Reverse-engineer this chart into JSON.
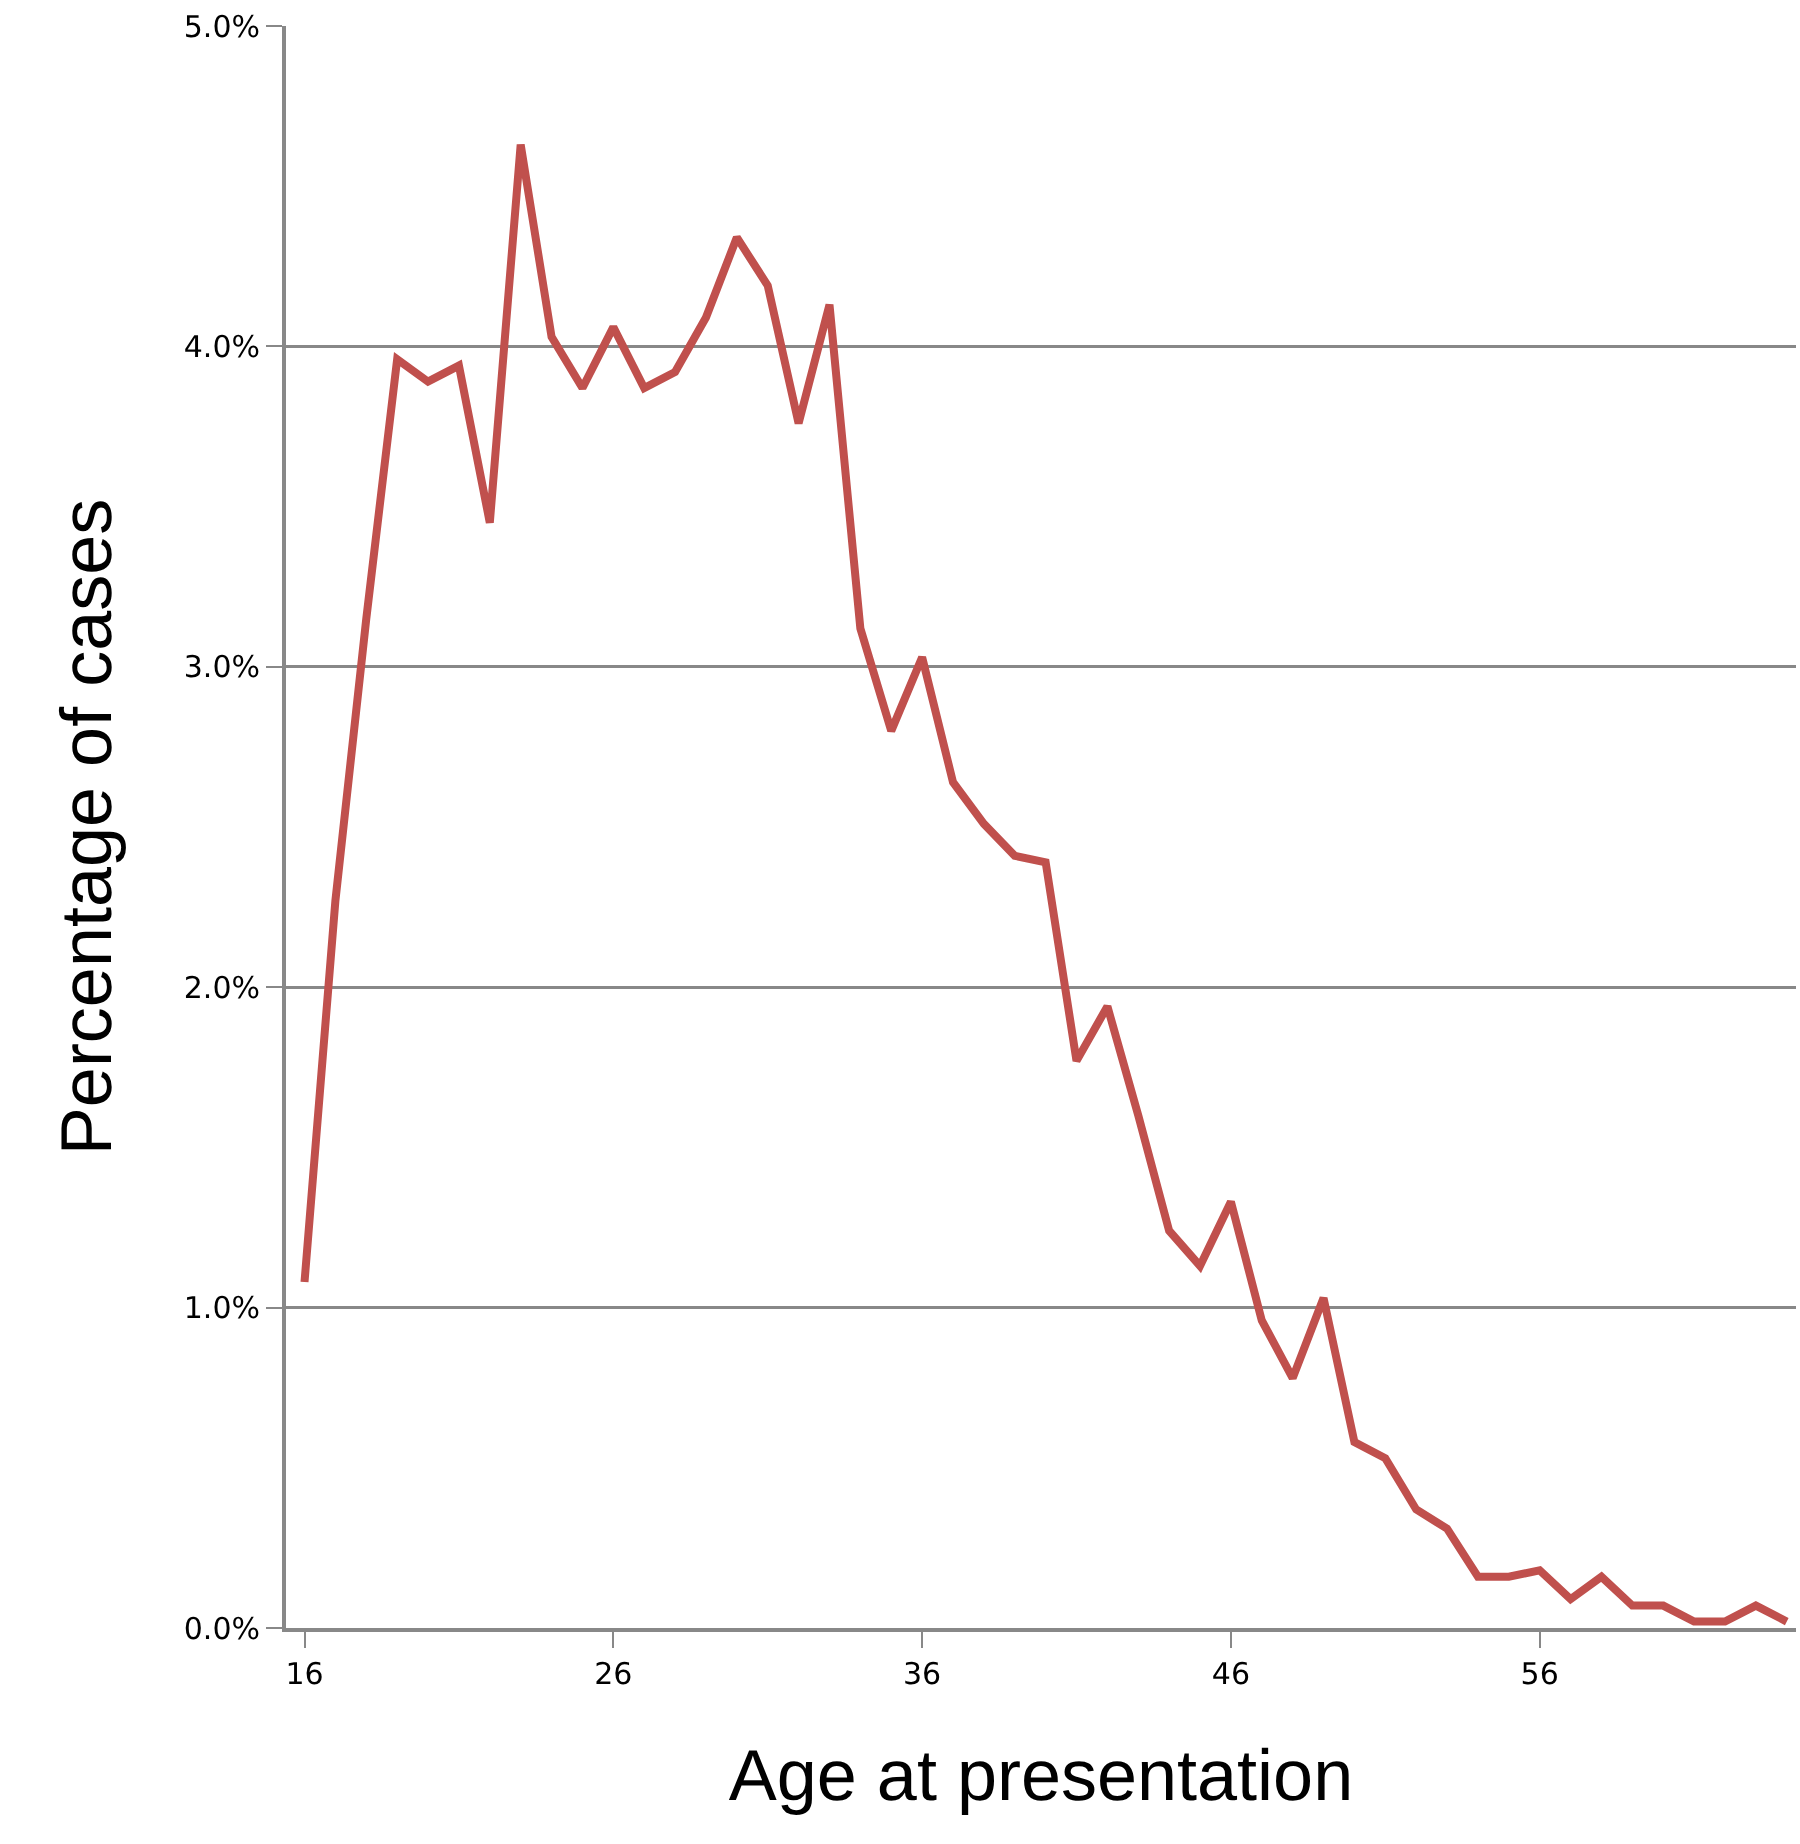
{
  "chart_data": {
    "type": "line",
    "xlabel": "Age at presentation",
    "ylabel": "Percentage of cases",
    "x": [
      16,
      17,
      18,
      19,
      20,
      21,
      22,
      23,
      24,
      25,
      26,
      27,
      28,
      29,
      30,
      31,
      32,
      33,
      34,
      35,
      36,
      37,
      38,
      39,
      40,
      41,
      42,
      43,
      44,
      45,
      46,
      47,
      48,
      49,
      50,
      51,
      52,
      53,
      54,
      55,
      56,
      57,
      58,
      59,
      60,
      61,
      62,
      63,
      64
    ],
    "series": [
      {
        "color": "#c0504d",
        "values": [
          1.08,
          2.27,
          3.15,
          3.96,
          3.89,
          3.94,
          3.45,
          4.63,
          4.03,
          3.87,
          4.06,
          3.87,
          3.92,
          4.09,
          4.34,
          4.19,
          3.76,
          4.13,
          3.12,
          2.8,
          3.03,
          2.64,
          2.51,
          2.41,
          2.39,
          1.77,
          1.94,
          1.6,
          1.24,
          1.13,
          1.33,
          0.96,
          0.78,
          1.03,
          0.58,
          0.53,
          0.37,
          0.31,
          0.16,
          0.16,
          0.18,
          0.09,
          0.16,
          0.07,
          0.07,
          0.02,
          0.02,
          0.07,
          0.02
        ]
      }
    ],
    "xlim": [
      15.4,
      64.3
    ],
    "xticks": [
      16,
      26,
      36,
      46,
      56
    ],
    "ylim": [
      0,
      5
    ],
    "yticks": [
      {
        "value": 0,
        "label": "0.0%"
      },
      {
        "value": 1,
        "label": "1.0%"
      },
      {
        "value": 2,
        "label": "2.0%"
      },
      {
        "value": 3,
        "label": "3.0%"
      },
      {
        "value": 4,
        "label": "4.0%"
      },
      {
        "value": 5,
        "label": "5.0%"
      }
    ],
    "grid": "y",
    "marker": "none",
    "line_style": "solid"
  }
}
